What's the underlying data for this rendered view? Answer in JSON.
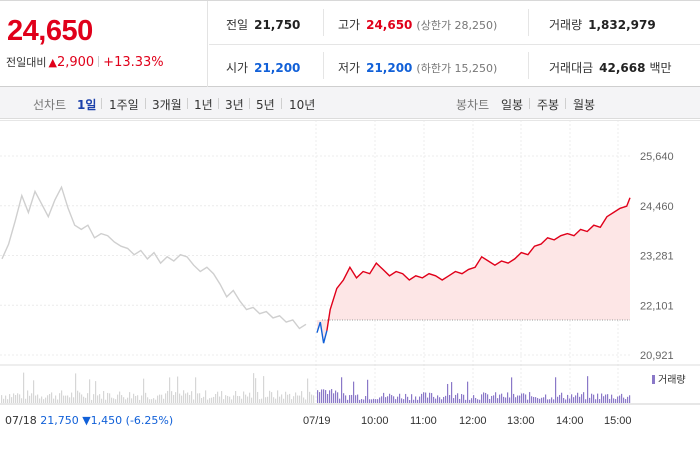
{
  "quote": {
    "price": "24,650",
    "change_label": "전일대비",
    "change_arrow": "▲",
    "change_amount": "2,900",
    "change_pct": "+13.33%"
  },
  "stats": {
    "prev_close": {
      "label": "전일",
      "value": "21,750"
    },
    "high": {
      "label": "고가",
      "value": "24,650",
      "sub": "(상한가 28,250)"
    },
    "volume": {
      "label": "거래량",
      "value": "1,832,979"
    },
    "open": {
      "label": "시가",
      "value": "21,200"
    },
    "low": {
      "label": "저가",
      "value": "21,200",
      "sub": "(하한가 15,250)"
    },
    "turnover": {
      "label": "거래대금",
      "value": "42,668",
      "unit": "백만"
    }
  },
  "periods": {
    "line_label": "선차트",
    "items": [
      "1일",
      "1주일",
      "3개월",
      "1년",
      "3년",
      "5년",
      "10년"
    ],
    "selected": "1일",
    "candle_label": "봉차트",
    "candle_items": [
      "일봉",
      "주봉",
      "월봉"
    ]
  },
  "colors": {
    "up": "#e0001a",
    "down": "#1160d8",
    "prev_day_line": "#cfcfcf",
    "fill": "#fde6e6",
    "volume": "#8a78c8"
  },
  "chart_data": {
    "type": "line",
    "y_ticks": [
      "25,640",
      "24,460",
      "23,281",
      "22,101",
      "20,921"
    ],
    "ylim": [
      20921,
      25640
    ],
    "x_ticks": [
      "07/18",
      "07/19",
      "10:00",
      "11:00",
      "12:00",
      "13:00",
      "14:00",
      "15:00"
    ],
    "reference_price": 21750,
    "prev_day_label": {
      "date": "07/18",
      "close": "21,750",
      "arrow": "▼",
      "change": "1,450",
      "pct": "(-6.25%)"
    },
    "volume_legend": "거래량",
    "prev_day_series": [
      {
        "x": 0,
        "y": 23200
      },
      {
        "x": 2,
        "y": 23550
      },
      {
        "x": 4,
        "y": 24100
      },
      {
        "x": 6,
        "y": 24700
      },
      {
        "x": 8,
        "y": 24300
      },
      {
        "x": 10,
        "y": 24800
      },
      {
        "x": 12,
        "y": 24500
      },
      {
        "x": 14,
        "y": 24200
      },
      {
        "x": 16,
        "y": 24600
      },
      {
        "x": 18,
        "y": 24900
      },
      {
        "x": 20,
        "y": 24400
      },
      {
        "x": 22,
        "y": 24000
      },
      {
        "x": 24,
        "y": 23900
      },
      {
        "x": 26,
        "y": 24000
      },
      {
        "x": 28,
        "y": 23700
      },
      {
        "x": 30,
        "y": 23800
      },
      {
        "x": 32,
        "y": 23750
      },
      {
        "x": 34,
        "y": 23600
      },
      {
        "x": 36,
        "y": 23500
      },
      {
        "x": 38,
        "y": 23450
      },
      {
        "x": 40,
        "y": 23300
      },
      {
        "x": 42,
        "y": 23400
      },
      {
        "x": 44,
        "y": 23200
      },
      {
        "x": 46,
        "y": 23350
      },
      {
        "x": 48,
        "y": 23100
      },
      {
        "x": 50,
        "y": 23250
      },
      {
        "x": 52,
        "y": 23150
      },
      {
        "x": 54,
        "y": 23300
      },
      {
        "x": 56,
        "y": 23250
      },
      {
        "x": 58,
        "y": 23050
      },
      {
        "x": 60,
        "y": 22900
      },
      {
        "x": 62,
        "y": 23000
      },
      {
        "x": 64,
        "y": 22850
      },
      {
        "x": 66,
        "y": 22600
      },
      {
        "x": 68,
        "y": 22300
      },
      {
        "x": 70,
        "y": 22450
      },
      {
        "x": 72,
        "y": 22200
      },
      {
        "x": 74,
        "y": 22000
      },
      {
        "x": 76,
        "y": 22050
      },
      {
        "x": 78,
        "y": 21900
      },
      {
        "x": 80,
        "y": 21950
      },
      {
        "x": 82,
        "y": 21800
      },
      {
        "x": 84,
        "y": 21850
      },
      {
        "x": 86,
        "y": 21700
      },
      {
        "x": 88,
        "y": 21750
      },
      {
        "x": 90,
        "y": 21550
      },
      {
        "x": 92,
        "y": 21650
      }
    ],
    "today_series": [
      {
        "x": 0,
        "y": 21450
      },
      {
        "x": 1,
        "y": 21700
      },
      {
        "x": 2,
        "y": 21200
      },
      {
        "x": 3,
        "y": 21500
      },
      {
        "x": 4,
        "y": 22000
      },
      {
        "x": 6,
        "y": 22500
      },
      {
        "x": 8,
        "y": 22700
      },
      {
        "x": 10,
        "y": 23000
      },
      {
        "x": 12,
        "y": 22750
      },
      {
        "x": 14,
        "y": 22900
      },
      {
        "x": 16,
        "y": 22850
      },
      {
        "x": 18,
        "y": 23100
      },
      {
        "x": 20,
        "y": 22950
      },
      {
        "x": 22,
        "y": 22800
      },
      {
        "x": 24,
        "y": 22900
      },
      {
        "x": 26,
        "y": 22850
      },
      {
        "x": 28,
        "y": 22700
      },
      {
        "x": 30,
        "y": 22800
      },
      {
        "x": 32,
        "y": 22750
      },
      {
        "x": 34,
        "y": 22850
      },
      {
        "x": 36,
        "y": 22800
      },
      {
        "x": 38,
        "y": 22700
      },
      {
        "x": 40,
        "y": 22800
      },
      {
        "x": 42,
        "y": 22900
      },
      {
        "x": 44,
        "y": 22850
      },
      {
        "x": 46,
        "y": 22950
      },
      {
        "x": 48,
        "y": 23000
      },
      {
        "x": 50,
        "y": 23250
      },
      {
        "x": 52,
        "y": 23150
      },
      {
        "x": 54,
        "y": 23050
      },
      {
        "x": 56,
        "y": 23150
      },
      {
        "x": 58,
        "y": 23100
      },
      {
        "x": 60,
        "y": 23200
      },
      {
        "x": 62,
        "y": 23350
      },
      {
        "x": 64,
        "y": 23300
      },
      {
        "x": 66,
        "y": 23500
      },
      {
        "x": 68,
        "y": 23550
      },
      {
        "x": 70,
        "y": 23700
      },
      {
        "x": 72,
        "y": 23650
      },
      {
        "x": 74,
        "y": 23750
      },
      {
        "x": 76,
        "y": 23800
      },
      {
        "x": 78,
        "y": 23750
      },
      {
        "x": 80,
        "y": 23900
      },
      {
        "x": 82,
        "y": 23850
      },
      {
        "x": 84,
        "y": 24000
      },
      {
        "x": 86,
        "y": 23950
      },
      {
        "x": 88,
        "y": 24200
      },
      {
        "x": 90,
        "y": 24300
      },
      {
        "x": 92,
        "y": 24400
      },
      {
        "x": 94,
        "y": 24450
      },
      {
        "x": 95,
        "y": 24650
      }
    ]
  }
}
